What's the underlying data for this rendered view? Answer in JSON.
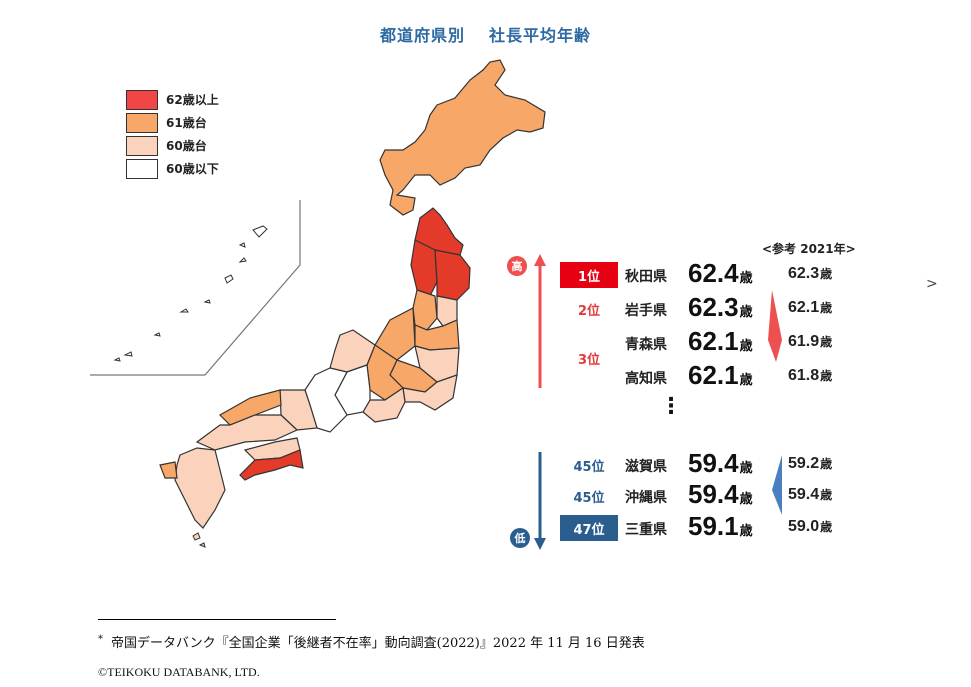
{
  "title": {
    "part1": "都道府県別",
    "part2": "社長平均年齢"
  },
  "legend": [
    {
      "label": "62歳以上",
      "color": "#f24646"
    },
    {
      "label": "61歳台",
      "color": "#f7a868"
    },
    {
      "label": "60歳台",
      "color": "#fbd2bc"
    },
    {
      "label": "60歳以下",
      "color": "#ffffff"
    }
  ],
  "ranking": {
    "reference_header": "<参考 2021年>",
    "high_label": "高",
    "low_label": "低",
    "unit": "歳",
    "top": [
      {
        "rank": "1位",
        "pref": "秋田県",
        "age": "62.4",
        "ref": "62.3"
      },
      {
        "rank": "2位",
        "pref": "岩手県",
        "age": "62.3",
        "ref": "62.1"
      },
      {
        "rank": "3位",
        "pref": "青森県",
        "age": "62.1",
        "ref": "61.9"
      },
      {
        "rank": "",
        "pref": "高知県",
        "age": "62.1",
        "ref": "61.8"
      }
    ],
    "bottom": [
      {
        "rank": "45位",
        "pref": "滋賀県",
        "age": "59.4",
        "ref": "59.2"
      },
      {
        "rank": "45位",
        "pref": "沖縄県",
        "age": "59.4",
        "ref": "59.4"
      },
      {
        "rank": "47位",
        "pref": "三重県",
        "age": "59.1",
        "ref": "59.0"
      }
    ],
    "ellipsis": "⋮"
  },
  "side_caret": ">",
  "footnote": {
    "mark": "*",
    "text": "帝国データバンク『全国企業「後継者不在率」動向調査(2022)』2022 年 11 月 16 日発表"
  },
  "copyright": "©TEIKOKU DATABANK, LTD."
}
